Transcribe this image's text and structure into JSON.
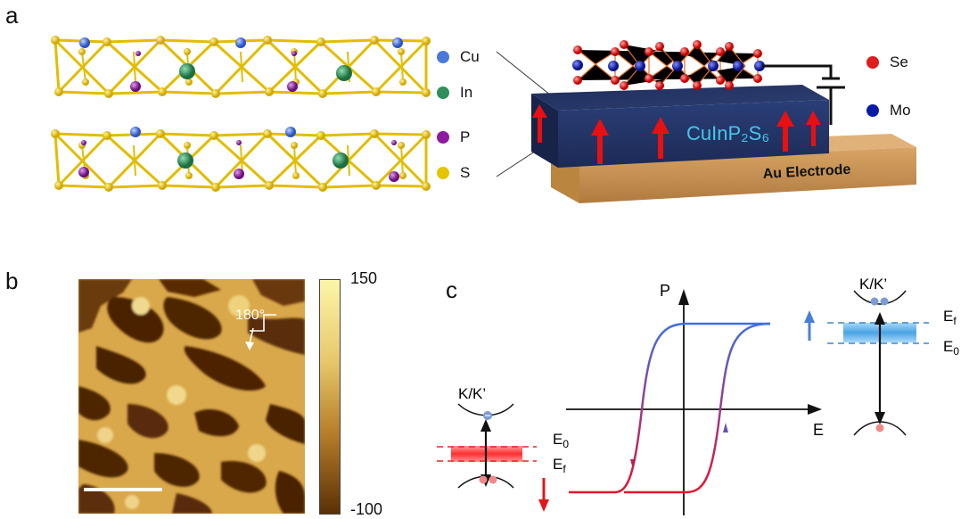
{
  "panels": {
    "a": "a",
    "b": "b",
    "c": "c"
  },
  "panel_a": {
    "legend": [
      {
        "label": "Cu",
        "color": "#4b79d9"
      },
      {
        "label": "In",
        "color": "#2f8e5a"
      },
      {
        "label": "P",
        "color": "#8e1aa0"
      },
      {
        "label": "S",
        "color": "#e5c400"
      }
    ],
    "device_legend": [
      {
        "label": "Se",
        "color": "#e11b1b"
      },
      {
        "label": "Mo",
        "color": "#0a1aa8"
      }
    ],
    "material_label": "CuInP₂S₆",
    "electrode_label": "Au Electrode"
  },
  "panel_b": {
    "angle_label": "180°",
    "colorbar_max": "150",
    "colorbar_min": "-100"
  },
  "panel_c": {
    "axis_p": "P",
    "axis_e": "E",
    "valley_label_left": "K/K’",
    "valley_label_right": "K/K’",
    "left_levels": {
      "upper": "E",
      "upper_sub": "0",
      "lower": "E",
      "lower_sub": "f"
    },
    "right_levels": {
      "upper": "E",
      "upper_sub": "f",
      "lower": "E",
      "lower_sub": "0"
    }
  }
}
